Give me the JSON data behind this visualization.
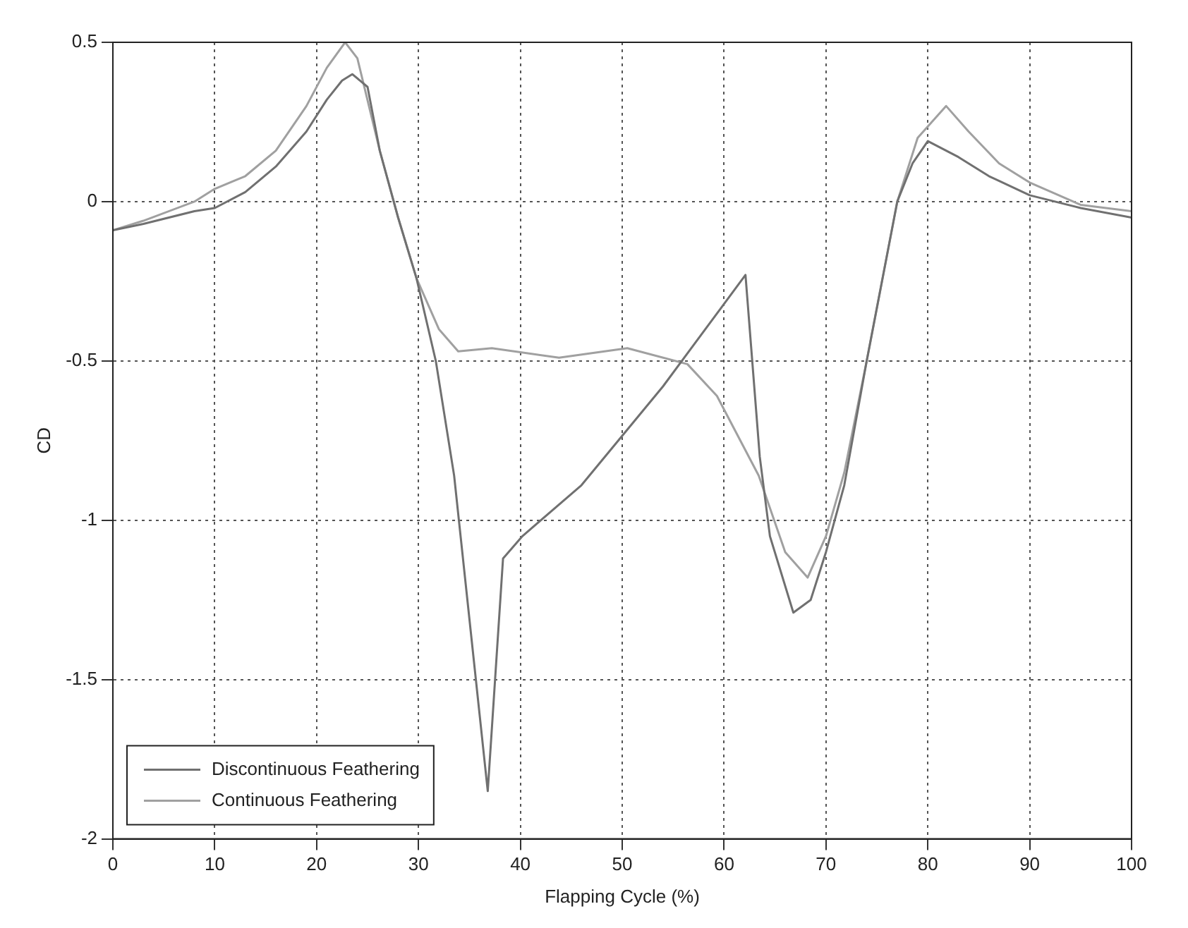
{
  "chart_data": {
    "type": "line",
    "xlabel": "Flapping Cycle (%)",
    "ylabel": "CD",
    "xlim": [
      0,
      100
    ],
    "xticks": [
      0,
      10,
      20,
      30,
      40,
      50,
      60,
      70,
      80,
      90,
      100
    ],
    "ylim": [
      -2,
      0.5
    ],
    "yticks": [
      -2,
      -1.5,
      -1,
      -0.5,
      0,
      0.5
    ],
    "grid": true,
    "legend": "bottom left",
    "marker": "none",
    "line_style": "solid",
    "series": [
      {
        "name": "Discontinuous Feathering",
        "color": "#707070",
        "x": [
          0,
          3,
          8,
          10,
          13,
          16,
          19,
          21,
          22.5,
          23.5,
          25,
          26.2,
          28,
          29.8,
          31.7,
          33.5,
          36.8,
          38.3,
          40.2,
          46,
          54,
          62.1,
          63.5,
          64.5,
          66.8,
          68.5,
          70,
          71.8,
          74,
          77,
          78.5,
          80,
          83,
          86,
          90,
          95,
          100
        ],
        "values": [
          -0.09,
          -0.07,
          -0.03,
          -0.02,
          0.03,
          0.11,
          0.22,
          0.32,
          0.38,
          0.4,
          0.36,
          0.16,
          -0.05,
          -0.24,
          -0.5,
          -0.86,
          -1.85,
          -1.12,
          -1.05,
          -0.89,
          -0.58,
          -0.23,
          -0.8,
          -1.05,
          -1.29,
          -1.25,
          -1.1,
          -0.89,
          -0.5,
          0,
          0.12,
          0.19,
          0.14,
          0.08,
          0.02,
          -0.02,
          -0.05
        ]
      },
      {
        "name": "Continuous Feathering",
        "color": "#a0a0a0",
        "x": [
          0,
          3,
          8,
          10,
          13,
          16,
          19,
          21,
          22.8,
          24,
          26.2,
          28,
          29.8,
          32,
          33.9,
          37.2,
          43.8,
          50.5,
          56.4,
          59.3,
          63.4,
          66,
          68.2,
          70,
          71.8,
          74,
          77,
          79,
          81.8,
          84,
          87,
          90,
          95,
          100
        ],
        "values": [
          -0.09,
          -0.06,
          0,
          0.04,
          0.08,
          0.16,
          0.3,
          0.42,
          0.5,
          0.45,
          0.16,
          -0.05,
          -0.24,
          -0.4,
          -0.47,
          -0.46,
          -0.49,
          -0.46,
          -0.51,
          -0.61,
          -0.86,
          -1.1,
          -1.18,
          -1.05,
          -0.85,
          -0.5,
          0,
          0.2,
          0.3,
          0.22,
          0.12,
          0.06,
          -0.01,
          -0.03
        ]
      }
    ]
  }
}
